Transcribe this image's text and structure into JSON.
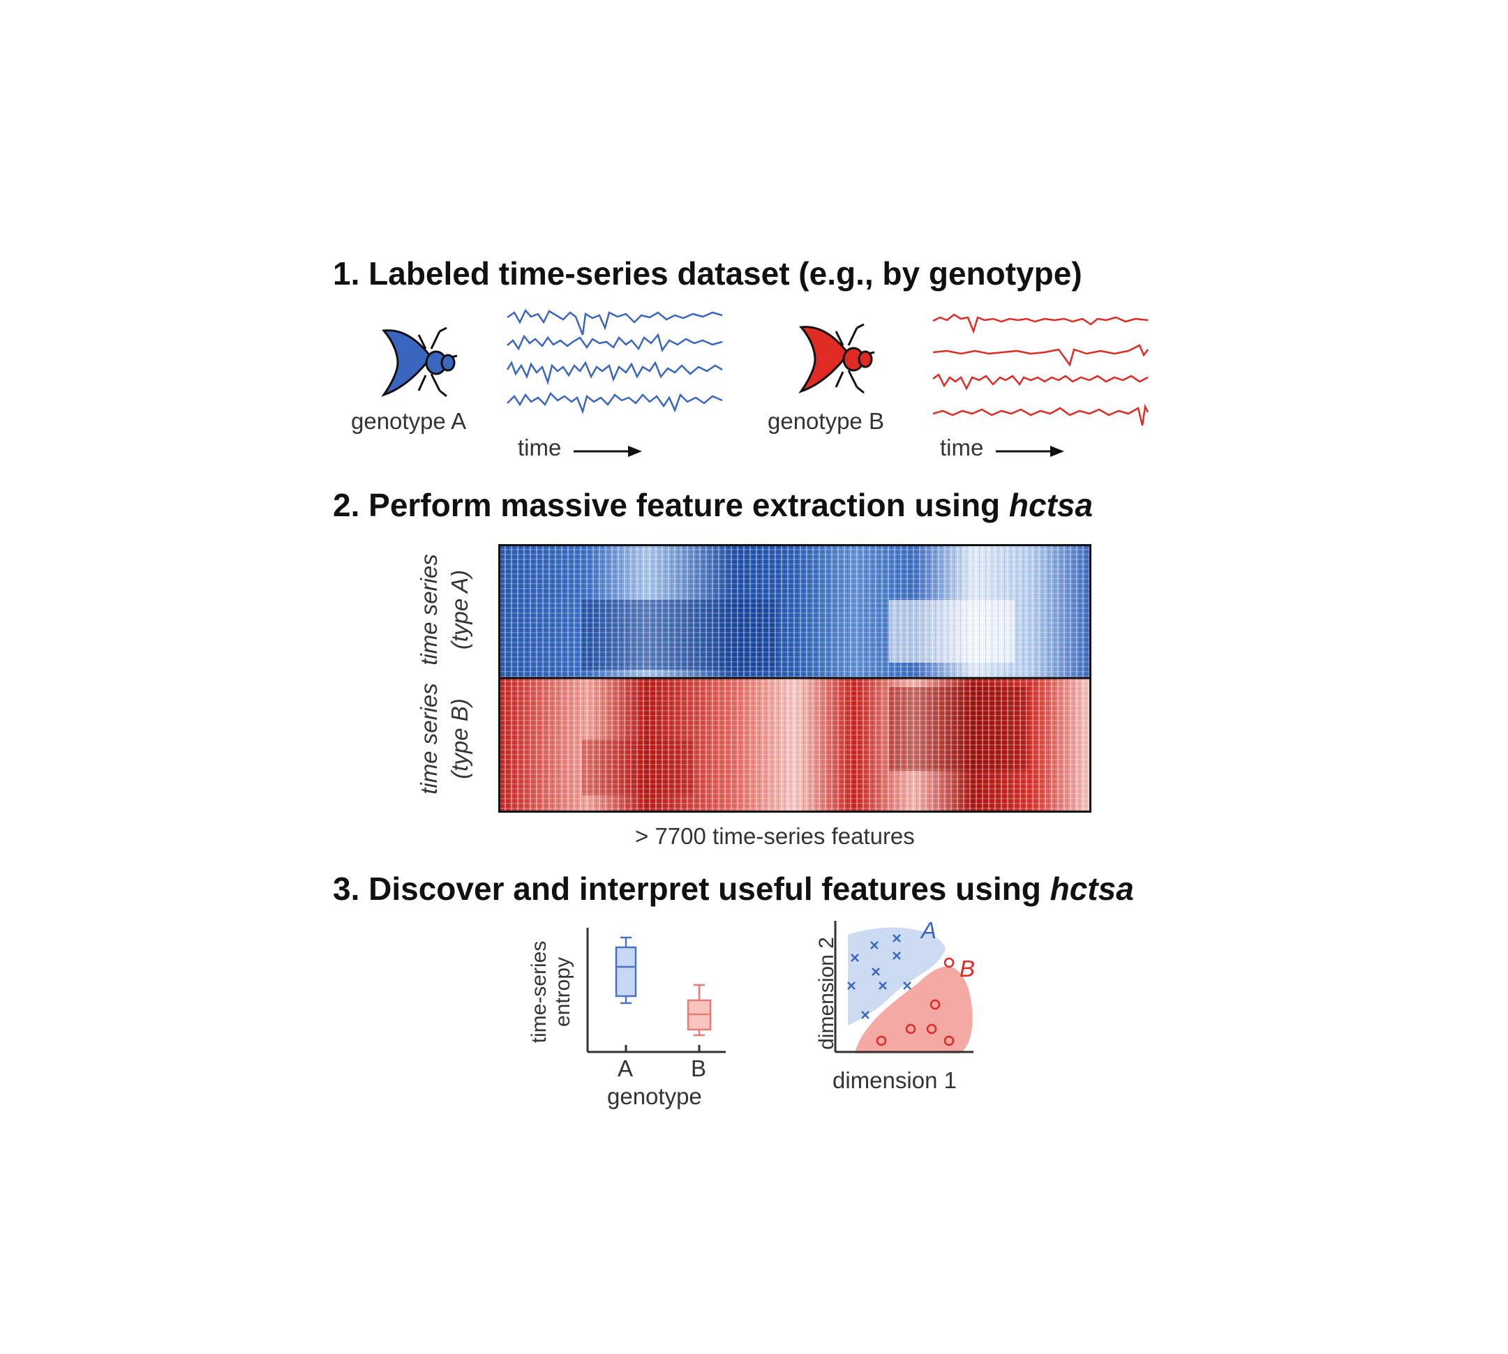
{
  "step1": {
    "title": "1. Labeled time-series dataset (e.g., by genotype)",
    "genotype_a": "genotype A",
    "genotype_b": "genotype B",
    "time_label": "time",
    "color_a": "#3a66c0",
    "color_b": "#e02a24"
  },
  "step2": {
    "title_prefix": "2. Perform massive feature extraction using ",
    "title_tool": "hctsa",
    "row_label_a_line1": "time series",
    "row_label_a_line2": "(type A)",
    "row_label_b_line1": "time series",
    "row_label_b_line2": "(type B)",
    "x_caption": "> 7700 time-series features"
  },
  "step3": {
    "title_prefix": "3. Discover and interpret useful features using ",
    "title_tool": "hctsa",
    "boxplot": {
      "ylabel_line1": "time-series",
      "ylabel_line2": "entropy",
      "categories": [
        "A",
        "B"
      ],
      "xlabel": "genotype"
    },
    "scatter": {
      "xlabel": "dimension 1",
      "ylabel": "dimension 2",
      "class_a": "A",
      "class_b": "B"
    }
  }
}
